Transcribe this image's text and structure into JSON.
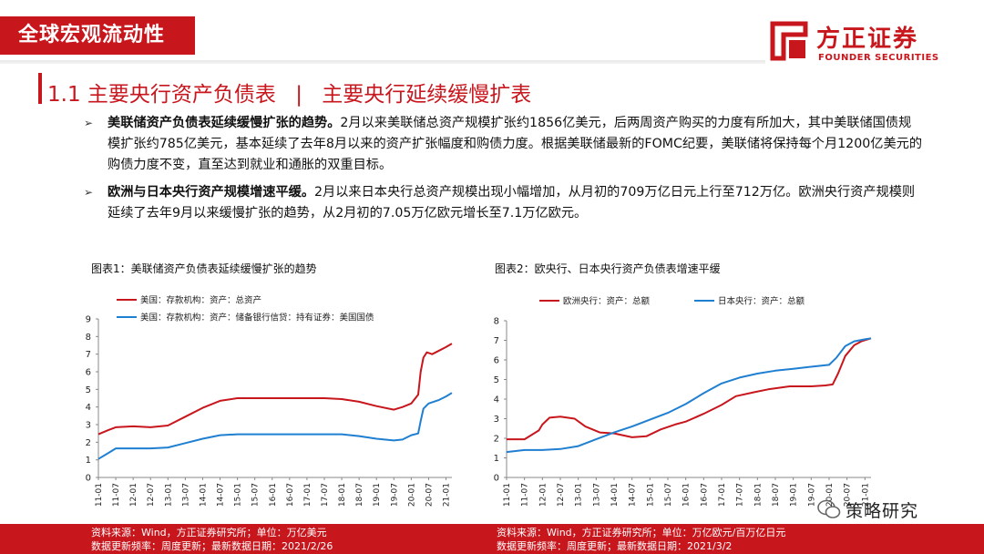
{
  "header": {
    "section_tab": "全球宏观流动性"
  },
  "logo": {
    "name_cn": "方正证券",
    "name_en": "FOUNDER SECURITIES"
  },
  "slide_title": {
    "number": "1.1",
    "main": "主要央行资产负债表",
    "divider": "|",
    "sub": "主要央行延续缓慢扩表"
  },
  "bullets": [
    {
      "bold": "美联储资产负债表延续缓慢扩张的趋势。",
      "text": "2月以来美联储总资产规模扩张约1856亿美元，后两周资产购买的力度有所加大，其中美联储国债规模扩张约785亿美元，基本延续了去年8月以来的资产扩张幅度和购债力度。根据美联储最新的FOMC纪要，美联储将保持每个月1200亿美元的购债力度不变，直至达到就业和通胀的双重目标。"
    },
    {
      "bold": "欧洲与日本央行资产规模增速平缓。",
      "text": "2月以来日本央行总资产规模出现小幅增加，从月初的709万亿日元上行至712万亿。欧洲央行资产规模则延续了去年9月以来缓慢扩张的趋势，从2月初的7.05万亿欧元增长至7.1万亿欧元。"
    }
  ],
  "chart1": {
    "caption": "图表1：美联储资产负债表延续缓慢扩张的趋势",
    "source": "资料来源：Wind，方正证券研究所；单位：万亿美元",
    "update": "数据更新频率：周度更新；最新数据日期：2021/2/26"
  },
  "chart2": {
    "caption": "图表2：欧央行、日本央行资产负债表增速平缓",
    "source": "资料来源：Wind，方正证券研究所；单位：万亿欧元/百万亿日元",
    "update": "数据更新频率：周度更新；最新数据日期：2021/3/2"
  },
  "watermark": {
    "text": "策略研究"
  },
  "colors": {
    "brand_red": "#c8161d",
    "series_red": "#c8161d",
    "series_blue": "#1f7fd1"
  },
  "chart_data": [
    {
      "type": "line",
      "title": "",
      "ylim": [
        0,
        9
      ],
      "yticks": [
        "0",
        "1",
        "2",
        "3",
        "4",
        "5",
        "6",
        "7",
        "8",
        "9"
      ],
      "x_start": 2011.0,
      "x_end": 2021.17,
      "xticks": [
        "11-01",
        "11-07",
        "12-01",
        "12-07",
        "13-01",
        "13-07",
        "14-01",
        "14-07",
        "15-01",
        "15-07",
        "16-01",
        "16-07",
        "17-01",
        "17-07",
        "18-01",
        "18-07",
        "19-01",
        "19-07",
        "20-01",
        "20-07",
        "21-01"
      ],
      "legend_position": "top-left",
      "series": [
        {
          "name": "美国：存款机构：资产：总资产",
          "color": "#c8161d",
          "points": [
            [
              2011.0,
              2.45
            ],
            [
              2011.3,
              2.7
            ],
            [
              2011.5,
              2.85
            ],
            [
              2012.0,
              2.9
            ],
            [
              2012.5,
              2.85
            ],
            [
              2013.0,
              2.95
            ],
            [
              2013.5,
              3.45
            ],
            [
              2014.0,
              3.95
            ],
            [
              2014.5,
              4.35
            ],
            [
              2015.0,
              4.5
            ],
            [
              2015.5,
              4.5
            ],
            [
              2016.0,
              4.5
            ],
            [
              2016.5,
              4.5
            ],
            [
              2017.0,
              4.5
            ],
            [
              2017.5,
              4.5
            ],
            [
              2018.0,
              4.45
            ],
            [
              2018.5,
              4.3
            ],
            [
              2019.0,
              4.05
            ],
            [
              2019.5,
              3.85
            ],
            [
              2019.75,
              4.0
            ],
            [
              2020.0,
              4.2
            ],
            [
              2020.2,
              4.7
            ],
            [
              2020.27,
              6.0
            ],
            [
              2020.35,
              6.8
            ],
            [
              2020.45,
              7.1
            ],
            [
              2020.6,
              7.0
            ],
            [
              2020.8,
              7.2
            ],
            [
              2021.0,
              7.4
            ],
            [
              2021.17,
              7.6
            ]
          ]
        },
        {
          "name": "美国：存款机构：资产：储备银行信贷：持有证券：美国国债",
          "color": "#1f7fd1",
          "points": [
            [
              2011.0,
              1.05
            ],
            [
              2011.3,
              1.4
            ],
            [
              2011.5,
              1.65
            ],
            [
              2012.0,
              1.65
            ],
            [
              2012.5,
              1.65
            ],
            [
              2013.0,
              1.7
            ],
            [
              2013.5,
              1.95
            ],
            [
              2014.0,
              2.2
            ],
            [
              2014.5,
              2.4
            ],
            [
              2015.0,
              2.45
            ],
            [
              2015.5,
              2.45
            ],
            [
              2016.0,
              2.45
            ],
            [
              2016.5,
              2.45
            ],
            [
              2017.0,
              2.45
            ],
            [
              2017.5,
              2.45
            ],
            [
              2018.0,
              2.45
            ],
            [
              2018.5,
              2.35
            ],
            [
              2019.0,
              2.2
            ],
            [
              2019.5,
              2.1
            ],
            [
              2019.75,
              2.15
            ],
            [
              2020.0,
              2.4
            ],
            [
              2020.2,
              2.5
            ],
            [
              2020.27,
              3.2
            ],
            [
              2020.35,
              3.9
            ],
            [
              2020.5,
              4.2
            ],
            [
              2020.8,
              4.4
            ],
            [
              2021.0,
              4.6
            ],
            [
              2021.17,
              4.8
            ]
          ]
        }
      ]
    },
    {
      "type": "line",
      "title": "",
      "ylim": [
        0,
        8
      ],
      "yticks": [
        "0",
        "1",
        "2",
        "3",
        "4",
        "5",
        "6",
        "7",
        "8"
      ],
      "x_start": 2011.0,
      "x_end": 2021.17,
      "xticks": [
        "11-01",
        "11-07",
        "12-01",
        "12-07",
        "13-01",
        "13-07",
        "14-01",
        "14-07",
        "15-01",
        "15-07",
        "16-01",
        "16-07",
        "17-01",
        "17-07",
        "18-01",
        "18-07",
        "19-01",
        "19-07",
        "20-01",
        "20-07",
        "21-01"
      ],
      "legend_position": "top-left",
      "series": [
        {
          "name": "欧洲央行：资产：总额",
          "color": "#c8161d",
          "points": [
            [
              2011.0,
              1.95
            ],
            [
              2011.5,
              1.95
            ],
            [
              2011.9,
              2.4
            ],
            [
              2012.0,
              2.7
            ],
            [
              2012.2,
              3.05
            ],
            [
              2012.5,
              3.1
            ],
            [
              2012.9,
              3.0
            ],
            [
              2013.2,
              2.6
            ],
            [
              2013.6,
              2.3
            ],
            [
              2014.0,
              2.25
            ],
            [
              2014.5,
              2.05
            ],
            [
              2014.9,
              2.1
            ],
            [
              2015.3,
              2.45
            ],
            [
              2015.7,
              2.7
            ],
            [
              2016.0,
              2.85
            ],
            [
              2016.5,
              3.25
            ],
            [
              2017.0,
              3.7
            ],
            [
              2017.4,
              4.15
            ],
            [
              2017.9,
              4.35
            ],
            [
              2018.3,
              4.5
            ],
            [
              2018.9,
              4.65
            ],
            [
              2019.5,
              4.65
            ],
            [
              2019.9,
              4.7
            ],
            [
              2020.1,
              4.75
            ],
            [
              2020.25,
              5.3
            ],
            [
              2020.45,
              6.2
            ],
            [
              2020.7,
              6.75
            ],
            [
              2020.9,
              6.95
            ],
            [
              2021.17,
              7.1
            ]
          ]
        },
        {
          "name": "日本央行：资产：总额",
          "color": "#1f7fd1",
          "points": [
            [
              2011.0,
              1.3
            ],
            [
              2011.5,
              1.4
            ],
            [
              2012.0,
              1.4
            ],
            [
              2012.5,
              1.45
            ],
            [
              2013.0,
              1.6
            ],
            [
              2013.5,
              1.95
            ],
            [
              2014.0,
              2.3
            ],
            [
              2014.5,
              2.6
            ],
            [
              2015.0,
              2.95
            ],
            [
              2015.5,
              3.3
            ],
            [
              2016.0,
              3.75
            ],
            [
              2016.5,
              4.3
            ],
            [
              2017.0,
              4.8
            ],
            [
              2017.5,
              5.1
            ],
            [
              2018.0,
              5.3
            ],
            [
              2018.5,
              5.45
            ],
            [
              2019.0,
              5.55
            ],
            [
              2019.5,
              5.65
            ],
            [
              2020.0,
              5.75
            ],
            [
              2020.2,
              6.1
            ],
            [
              2020.45,
              6.7
            ],
            [
              2020.7,
              6.95
            ],
            [
              2021.0,
              7.05
            ],
            [
              2021.17,
              7.1
            ]
          ]
        }
      ]
    }
  ]
}
